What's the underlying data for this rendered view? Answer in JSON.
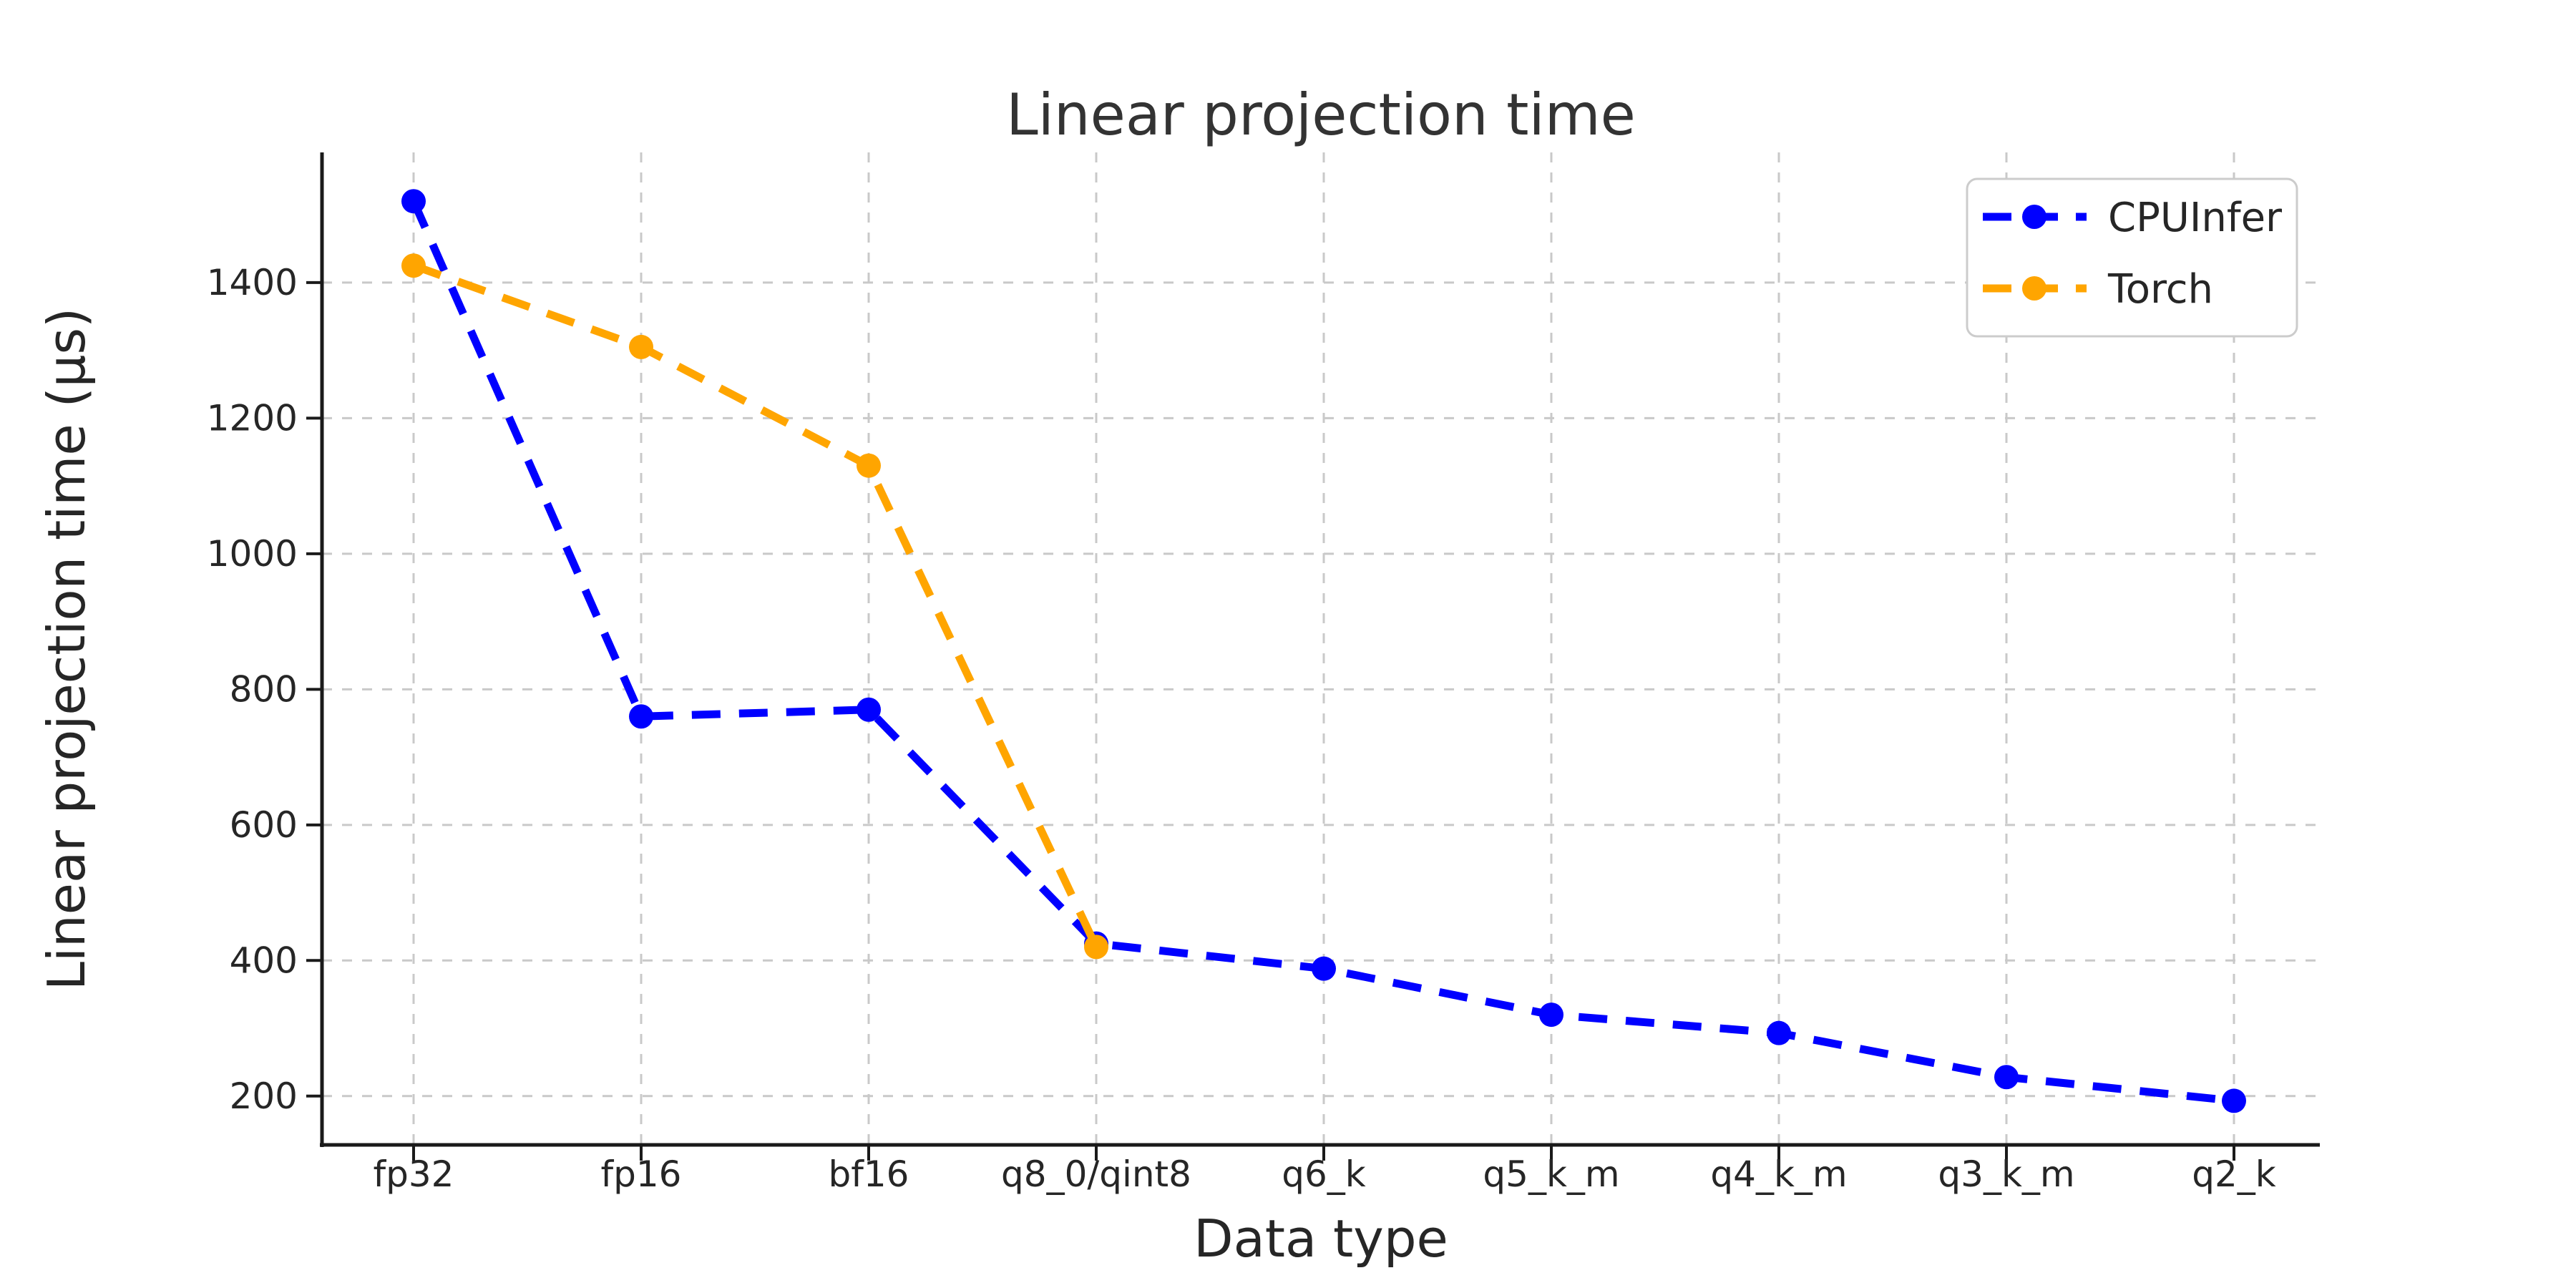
{
  "title": "Linear projection time",
  "axes": {
    "xlabel": "Data type",
    "ylabel": "Linear projection time (µs)"
  },
  "chart_data": {
    "type": "line",
    "title": "Linear projection time",
    "xlabel": "Data type",
    "ylabel": "Linear projection time (µs)",
    "categories": [
      "fp32",
      "fp16",
      "bf16",
      "q8_0/qint8",
      "q6_k",
      "q5_k_m",
      "q4_k_m",
      "q3_k_m",
      "q2_k"
    ],
    "series": [
      {
        "name": "CPUInfer",
        "color": "#0000ff",
        "values": [
          1520,
          760,
          770,
          425,
          388,
          320,
          293,
          228,
          193
        ]
      },
      {
        "name": "Torch",
        "color": "#ffa500",
        "values": [
          1425,
          1305,
          1130,
          420,
          null,
          null,
          null,
          null,
          null
        ]
      }
    ],
    "yticks": [
      200,
      400,
      600,
      800,
      1000,
      1200,
      1400
    ],
    "ylim": [
      128,
      1592
    ],
    "grid": true,
    "grid_style": "dashed",
    "line_style": "dashed",
    "marker": "circle",
    "legend_position": "upper right"
  },
  "style": {
    "series_colors": [
      "#0000ff",
      "#ffa500"
    ],
    "grid_color": "#c9c9c9",
    "spine_color": "#1a1a1a",
    "legend_border_color": "#cccccc",
    "text_color": "#262626",
    "background": "#ffffff"
  }
}
